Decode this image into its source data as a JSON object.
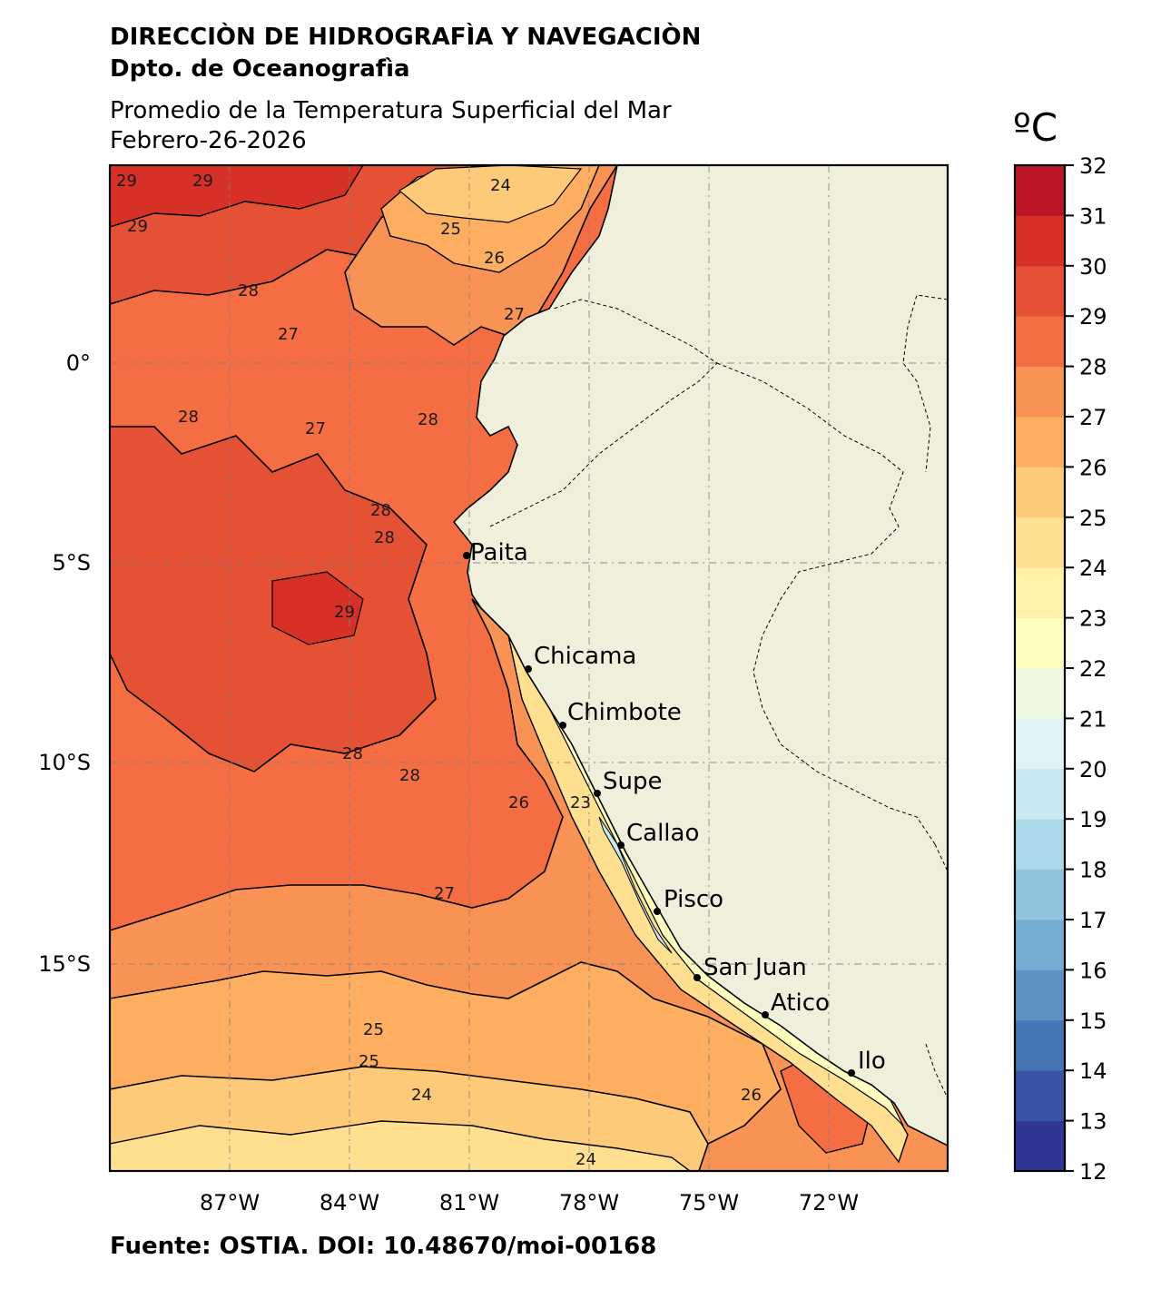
{
  "header": {
    "institution": "DIRECCIÒN DE HIDROGRAFÌA Y NAVEGACIÒN",
    "department": "Dpto. de Oceanografìa",
    "title": "Promedio de la Temperatura Superficial del Mar",
    "date": "Febrero-26-2026"
  },
  "colorbar": {
    "unit": "ºC",
    "min": 12,
    "max": 32,
    "ticks": [
      "12",
      "13",
      "14",
      "15",
      "16",
      "17",
      "18",
      "19",
      "20",
      "21",
      "22",
      "23",
      "24",
      "25",
      "26",
      "27",
      "28",
      "29",
      "30",
      "31",
      "32"
    ],
    "colors": [
      "#313695",
      "#3a53a4",
      "#4575b4",
      "#5e91c2",
      "#74add1",
      "#90c3dd",
      "#abd9e9",
      "#c9e8f2",
      "#e0f3f8",
      "#eff8e0",
      "#ffffbf",
      "#fff1a8",
      "#fee090",
      "#fdca79",
      "#fdae61",
      "#f99355",
      "#f46d43",
      "#e55135",
      "#d73027",
      "#bc1526",
      "#a50026"
    ]
  },
  "axes": {
    "lon_ticks": [
      "87°W",
      "84°W",
      "81°W",
      "78°W",
      "75°W",
      "72°W"
    ],
    "lat_ticks": [
      "0°",
      "5°S",
      "10°S",
      "15°S"
    ]
  },
  "cities": [
    {
      "name": "Paita"
    },
    {
      "name": "Chicama"
    },
    {
      "name": "Chimbote"
    },
    {
      "name": "Supe"
    },
    {
      "name": "Callao"
    },
    {
      "name": "Pisco"
    },
    {
      "name": "San Juan"
    },
    {
      "name": "Atico"
    },
    {
      "name": "Ilo"
    }
  ],
  "contour_labels": [
    "29",
    "29",
    "29",
    "24",
    "25",
    "26",
    "28",
    "27",
    "27",
    "28",
    "27",
    "28",
    "28",
    "28",
    "29",
    "28",
    "28",
    "26",
    "23",
    "27",
    "25",
    "25",
    "24",
    "24",
    "26"
  ],
  "source": "Fuente: OSTIA. DOI: 10.48670/moi-00168"
}
